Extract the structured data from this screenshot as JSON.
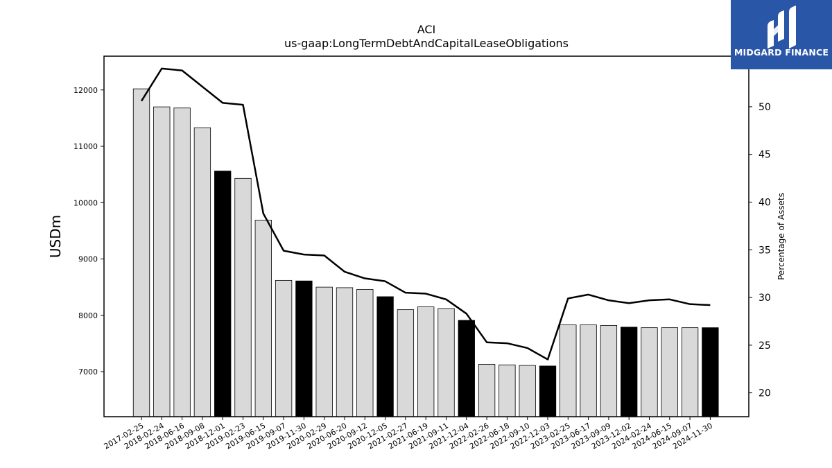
{
  "brand": {
    "name": "MIDGARD FINANCE",
    "logo_icon": "midgard-bars-icon",
    "color": "#2a56a8"
  },
  "chart_data": {
    "type": "bar",
    "title": "ACI",
    "subtitle": "us-gaap:LongTermDebtAndCapitalLeaseObligations",
    "ylabel": "USDm",
    "y2label": "Percentage of Assets",
    "ylim": [
      6200,
      12600
    ],
    "y2lim": [
      17.5,
      55.3
    ],
    "yticks": [
      7000,
      8000,
      9000,
      10000,
      11000,
      12000
    ],
    "y2ticks": [
      20,
      25,
      30,
      35,
      40,
      45,
      50
    ],
    "grid": false,
    "categories": [
      "2017-02-25",
      "2018-02-24",
      "2018-06-16",
      "2018-09-08",
      "2018-12-01",
      "2019-02-23",
      "2019-06-15",
      "2019-09-07",
      "2019-11-30",
      "2020-02-29",
      "2020-06-20",
      "2020-09-12",
      "2020-12-05",
      "2021-02-27",
      "2021-06-19",
      "2021-09-11",
      "2021-12-04",
      "2022-02-26",
      "2022-06-18",
      "2022-09-10",
      "2022-12-03",
      "2023-02-25",
      "2023-06-17",
      "2023-09-09",
      "2023-12-02",
      "2024-02-24",
      "2024-06-15",
      "2024-09-07",
      "2024-11-30"
    ],
    "series": [
      {
        "kind": "bar",
        "axis": "left",
        "values": [
          12020,
          11700,
          11680,
          11330,
          10560,
          10430,
          9690,
          8620,
          8610,
          8500,
          8490,
          8460,
          8330,
          8100,
          8150,
          8120,
          7910,
          7130,
          7120,
          7110,
          7100,
          7830,
          7830,
          7820,
          7790,
          7780,
          7780,
          7780,
          7780
        ],
        "highlight": [
          false,
          false,
          false,
          false,
          true,
          false,
          false,
          false,
          true,
          false,
          false,
          false,
          true,
          false,
          false,
          false,
          true,
          false,
          false,
          false,
          true,
          false,
          false,
          false,
          true,
          false,
          false,
          false,
          true
        ],
        "color": "#d9d9d9",
        "highlight_color": "#000000"
      },
      {
        "kind": "line",
        "axis": "right",
        "values": [
          50.6,
          54.0,
          53.8,
          52.1,
          50.4,
          50.2,
          38.8,
          34.9,
          34.5,
          34.4,
          32.7,
          32.0,
          31.7,
          30.5,
          30.4,
          29.8,
          28.3,
          25.3,
          25.2,
          24.7,
          23.5,
          29.9,
          30.3,
          29.7,
          29.4,
          29.7,
          29.8,
          29.3,
          29.2
        ],
        "color": "#000000"
      }
    ]
  }
}
